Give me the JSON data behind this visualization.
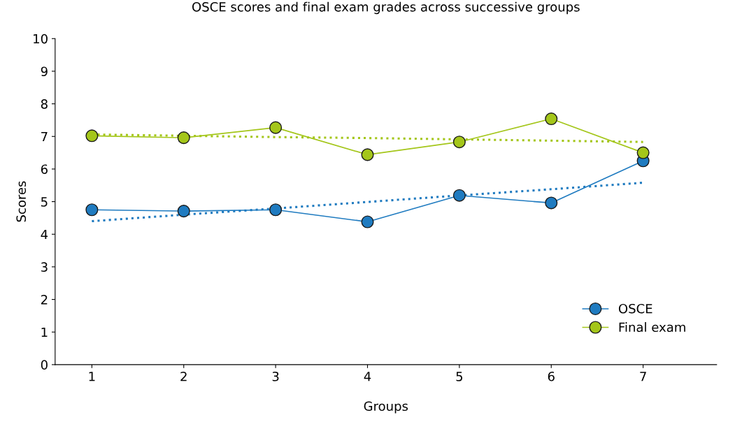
{
  "chart_data": {
    "type": "line",
    "title": "OSCE scores and final exam grades across successive groups",
    "xlabel": "Groups",
    "ylabel": "Scores",
    "categories": [
      "1",
      "2",
      "3",
      "4",
      "5",
      "6",
      "7"
    ],
    "series": [
      {
        "name": "OSCE",
        "color": "#1f7bc0",
        "values": [
          4.75,
          4.71,
          4.75,
          4.38,
          5.19,
          4.96,
          6.25
        ],
        "marker": "circle",
        "line_style": "solid"
      },
      {
        "name": "Final exam",
        "color": "#a4c61a",
        "values": [
          7.02,
          6.96,
          7.27,
          6.44,
          6.83,
          7.54,
          6.5
        ],
        "marker": "circle",
        "line_style": "solid"
      },
      {
        "color": "#1f7bc0",
        "values": [
          4.4,
          4.6,
          4.79,
          4.99,
          5.19,
          5.38,
          5.58
        ],
        "marker": "none",
        "line_style": "dotted"
      },
      {
        "color": "#a4c61a",
        "values": [
          7.06,
          7.02,
          6.98,
          6.95,
          6.91,
          6.87,
          6.83
        ],
        "marker": "none",
        "line_style": "dotted"
      }
    ],
    "ylim": [
      0,
      10
    ],
    "yticks": [
      0,
      1,
      2,
      3,
      4,
      5,
      6,
      7,
      8,
      9,
      10
    ],
    "grid": false,
    "legend": "bottom right"
  }
}
